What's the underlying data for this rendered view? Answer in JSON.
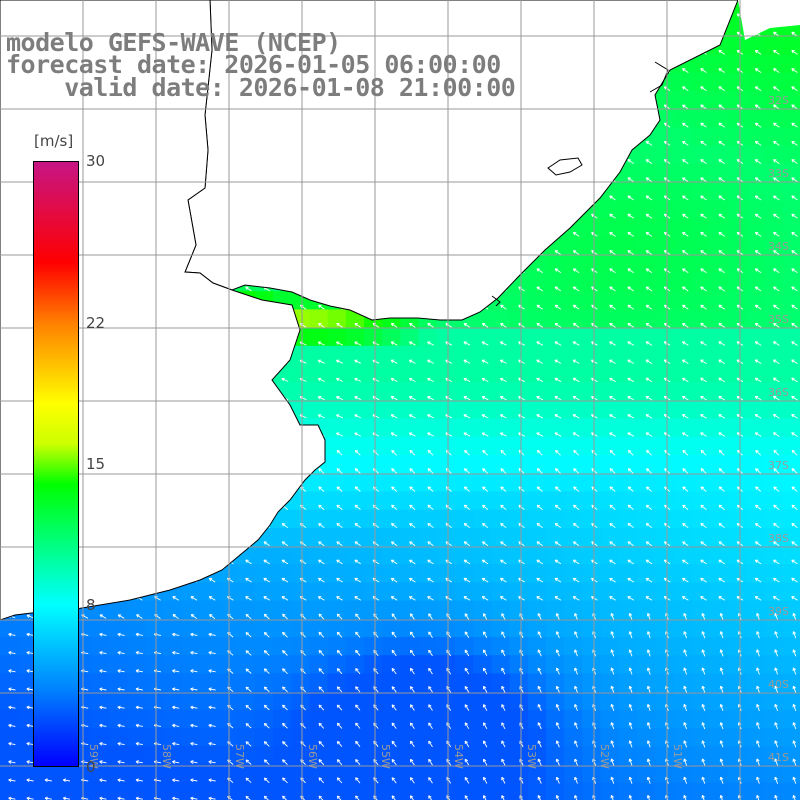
{
  "map": {
    "title_lines": [
      "modelo GEFS-WAVE (NCEP)",
      "forecast date: 2026-01-05 06:00:00",
      "    valid date: 2026-01-08 21:00:00"
    ],
    "model": "GEFS-WAVE",
    "provider": "NCEP",
    "forecast_date": "2026-01-05 06:00:00",
    "valid_date": "2026-01-08 21:00:00",
    "variable": "wind speed and direction",
    "region": "Rio de la Plata / Uruguay / southern Brazil coast (South Atlantic)",
    "colors": {
      "land": "#ffffff",
      "coastline": "#000000",
      "grid": "#999999",
      "arrows": "#ffffff",
      "title": "#7d7d7d"
    }
  },
  "legend": {
    "unit": "[m/s]",
    "min": 0,
    "max": 30,
    "tick_labels": [
      "30",
      "22",
      "15",
      "8",
      "0"
    ],
    "tick_values": [
      30,
      22,
      15,
      8,
      0
    ],
    "color_stops": [
      {
        "value": 0,
        "color": "#0000ff"
      },
      {
        "value": 4,
        "color": "#0088ff"
      },
      {
        "value": 8,
        "color": "#00ffff"
      },
      {
        "value": 11,
        "color": "#00ff80"
      },
      {
        "value": 14,
        "color": "#00ff00"
      },
      {
        "value": 16,
        "color": "#ccff00"
      },
      {
        "value": 18,
        "color": "#ffff00"
      },
      {
        "value": 22,
        "color": "#ff8000"
      },
      {
        "value": 25,
        "color": "#ff0000"
      },
      {
        "value": 30,
        "color": "#c71585"
      }
    ]
  },
  "grid_labels": {
    "lat": [
      "32S",
      "33S",
      "34S",
      "35S",
      "36S",
      "37S",
      "38S",
      "39S",
      "40S",
      "41S"
    ],
    "lon": [
      "59W",
      "58W",
      "57W",
      "56W",
      "55W",
      "54W",
      "53W",
      "52W",
      "51W"
    ]
  },
  "field": {
    "dominant_direction": "from southeast (flow toward northwest)",
    "max_region": "Rio de la Plata mouth, about 15–16 m/s",
    "open_ocean_south": "about 3–6 m/s"
  }
}
